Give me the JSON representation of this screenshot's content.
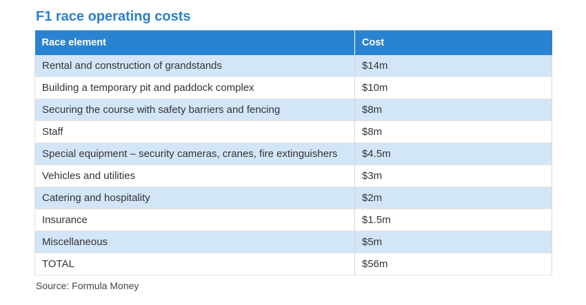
{
  "title": "F1 race operating costs",
  "table": {
    "headers": [
      "Race element",
      "Cost"
    ],
    "rows": [
      [
        "Rental and construction of grandstands",
        "$14m"
      ],
      [
        "Building a temporary pit and paddock complex",
        "$10m"
      ],
      [
        "Securing the course with safety barriers and fencing",
        "$8m"
      ],
      [
        "Staff",
        "$8m"
      ],
      [
        "Special equipment – security cameras, cranes, fire extinguishers",
        "$4.5m"
      ],
      [
        "Vehicles and utilities",
        "$3m"
      ],
      [
        "Catering and hospitality",
        "$2m"
      ],
      [
        "Insurance",
        "$1.5m"
      ],
      [
        "Miscellaneous",
        "$5m"
      ],
      [
        "TOTAL",
        "$56m"
      ]
    ]
  },
  "source": "Source: Formula Money",
  "colors": {
    "accent": "#2a83d0",
    "stripe": "#d3e6f8"
  }
}
